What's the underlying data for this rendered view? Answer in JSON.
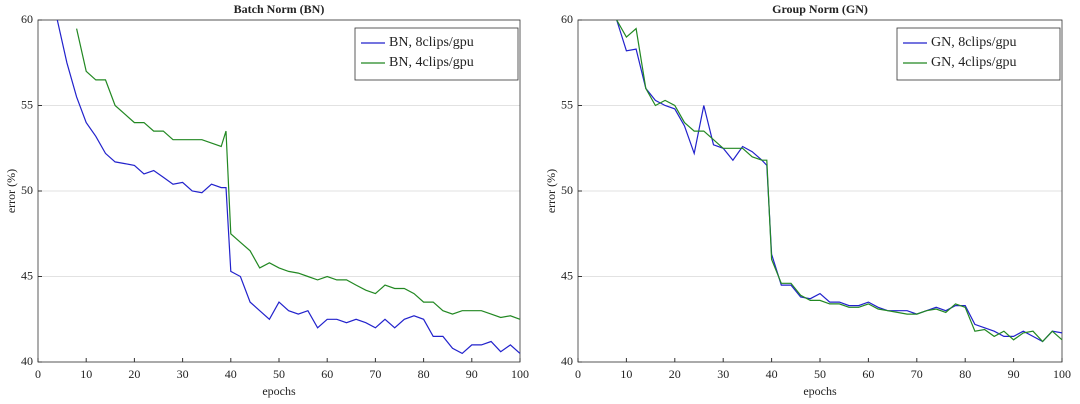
{
  "chart_data": [
    {
      "type": "line",
      "title": "Batch Norm (BN)",
      "xlabel": "epochs",
      "ylabel": "error (%)",
      "x": [
        4,
        6,
        8,
        10,
        12,
        14,
        16,
        18,
        20,
        22,
        24,
        26,
        28,
        30,
        32,
        34,
        36,
        38,
        39,
        40,
        42,
        44,
        46,
        48,
        50,
        52,
        54,
        56,
        58,
        60,
        62,
        64,
        66,
        68,
        70,
        72,
        74,
        76,
        78,
        80,
        82,
        84,
        86,
        88,
        90,
        92,
        94,
        96,
        98,
        100
      ],
      "series": [
        {
          "name": "BN, 8clips/gpu",
          "color": "#2222cc",
          "values": [
            60,
            57.5,
            55.5,
            54,
            53.2,
            52.2,
            51.7,
            51.6,
            51.5,
            51,
            51.2,
            50.8,
            50.4,
            50.5,
            50,
            49.9,
            50.4,
            50.2,
            50.2,
            45.3,
            45,
            43.5,
            43,
            42.5,
            43.5,
            43,
            42.8,
            43,
            42,
            42.5,
            42.5,
            42.3,
            42.5,
            42.3,
            42,
            42.5,
            42,
            42.5,
            42.7,
            42.5,
            41.5,
            41.5,
            40.8,
            40.5,
            41,
            41,
            41.2,
            40.6,
            41,
            40.5
          ]
        },
        {
          "name": "BN, 4clips/gpu",
          "color": "#228822",
          "values": [
            null,
            null,
            59.5,
            57,
            56.5,
            56.5,
            55,
            54.5,
            54,
            54,
            53.5,
            53.5,
            53,
            53,
            53,
            53,
            52.8,
            52.6,
            53.5,
            47.5,
            47,
            46.5,
            45.5,
            45.8,
            45.5,
            45.3,
            45.2,
            45,
            44.8,
            45,
            44.8,
            44.8,
            44.5,
            44.2,
            44,
            44.5,
            44.3,
            44.3,
            44,
            43.5,
            43.5,
            43,
            42.8,
            43,
            43,
            43,
            42.8,
            42.6,
            42.7,
            42.5
          ]
        }
      ],
      "xlim": [
        0,
        100
      ],
      "xticks": [
        0,
        10,
        20,
        30,
        40,
        50,
        60,
        70,
        80,
        90,
        100
      ],
      "ylim": [
        40,
        60
      ],
      "yticks": [
        40,
        45,
        50,
        55,
        60
      ],
      "grid": true,
      "legend": "upper right"
    },
    {
      "type": "line",
      "title": "Group Norm (GN)",
      "xlabel": "epochs",
      "ylabel": "error (%)",
      "x": [
        8,
        10,
        12,
        14,
        16,
        18,
        20,
        22,
        24,
        26,
        28,
        30,
        32,
        34,
        36,
        38,
        39,
        40,
        42,
        44,
        46,
        48,
        50,
        52,
        54,
        56,
        58,
        60,
        62,
        64,
        66,
        68,
        70,
        72,
        74,
        76,
        78,
        80,
        82,
        84,
        86,
        88,
        90,
        92,
        94,
        96,
        98,
        100
      ],
      "series": [
        {
          "name": "GN, 8clips/gpu",
          "color": "#2222cc",
          "values": [
            60,
            58.2,
            58.3,
            56,
            55.3,
            55,
            54.8,
            53.8,
            52.2,
            55,
            52.7,
            52.5,
            51.8,
            52.6,
            52.3,
            51.8,
            51.5,
            46.3,
            44.5,
            44.5,
            43.8,
            43.7,
            44,
            43.5,
            43.5,
            43.3,
            43.3,
            43.5,
            43.2,
            43,
            43,
            43,
            42.8,
            43,
            43.2,
            43,
            43.3,
            43.3,
            42.2,
            42,
            41.8,
            41.5,
            41.5,
            41.8,
            41.5,
            41.2,
            41.8,
            41.7
          ]
        },
        {
          "name": "GN, 4clips/gpu",
          "color": "#228822",
          "values": [
            60,
            59,
            59.5,
            56,
            55,
            55.3,
            55,
            54,
            53.5,
            53.5,
            53,
            52.5,
            52.5,
            52.5,
            52,
            51.8,
            51.8,
            46,
            44.6,
            44.6,
            43.9,
            43.6,
            43.6,
            43.4,
            43.4,
            43.2,
            43.2,
            43.4,
            43.1,
            43,
            42.9,
            42.8,
            42.8,
            43,
            43.1,
            42.9,
            43.4,
            43.2,
            41.8,
            41.9,
            41.5,
            41.8,
            41.3,
            41.7,
            41.8,
            41.2,
            41.8,
            41.3
          ]
        }
      ],
      "xlim": [
        0,
        100
      ],
      "xticks": [
        0,
        10,
        20,
        30,
        40,
        50,
        60,
        70,
        80,
        90,
        100
      ],
      "ylim": [
        40,
        60
      ],
      "yticks": [
        40,
        45,
        50,
        55,
        60
      ],
      "grid": true,
      "legend": "upper right"
    }
  ]
}
